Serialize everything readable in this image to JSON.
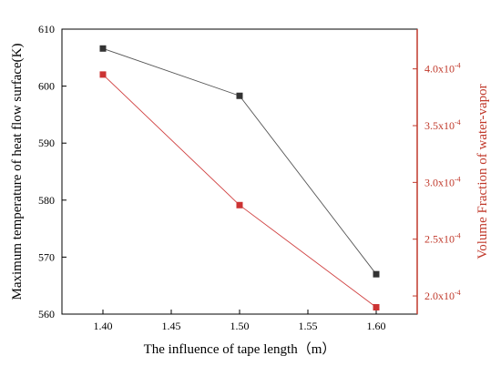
{
  "chart_data": {
    "type": "line",
    "title": "",
    "xlabel": "The influence of tape length（m）",
    "ylabel_left": "Maximum temperature of heat flow surface(K)",
    "ylabel_right": "Volume Fraction of water-vapor",
    "x": [
      1.4,
      1.5,
      1.6
    ],
    "x_ticks": [
      "1.40",
      "1.45",
      "1.50",
      "1.55",
      "1.60"
    ],
    "xlim": [
      1.37,
      1.63
    ],
    "left_axis": {
      "ylim": [
        560,
        610
      ],
      "ticks": [
        "560",
        "570",
        "580",
        "590",
        "600",
        "610"
      ],
      "color": "#000000"
    },
    "right_axis": {
      "ylim": [
        0.000184,
        0.000435
      ],
      "ticks": [
        {
          "value": 0.0002,
          "mantissa": "2.0x10",
          "exp": "-4"
        },
        {
          "value": 0.00025,
          "mantissa": "2.5x10",
          "exp": "-4"
        },
        {
          "value": 0.0003,
          "mantissa": "3.0x10",
          "exp": "-4"
        },
        {
          "value": 0.00035,
          "mantissa": "3.5x10",
          "exp": "-4"
        },
        {
          "value": 0.0004,
          "mantissa": "4.0x10",
          "exp": "-4"
        }
      ],
      "color": "#c0392b"
    },
    "series": [
      {
        "axis": "left",
        "values": [
          606.6,
          598.3,
          567.0
        ],
        "color": "#555555",
        "marker_color": "#333333"
      },
      {
        "axis": "right",
        "values": [
          0.000395,
          0.00028,
          0.00019
        ],
        "color": "#d04040",
        "marker_color": "#cc3333"
      }
    ],
    "grid": false,
    "legend": "none"
  }
}
